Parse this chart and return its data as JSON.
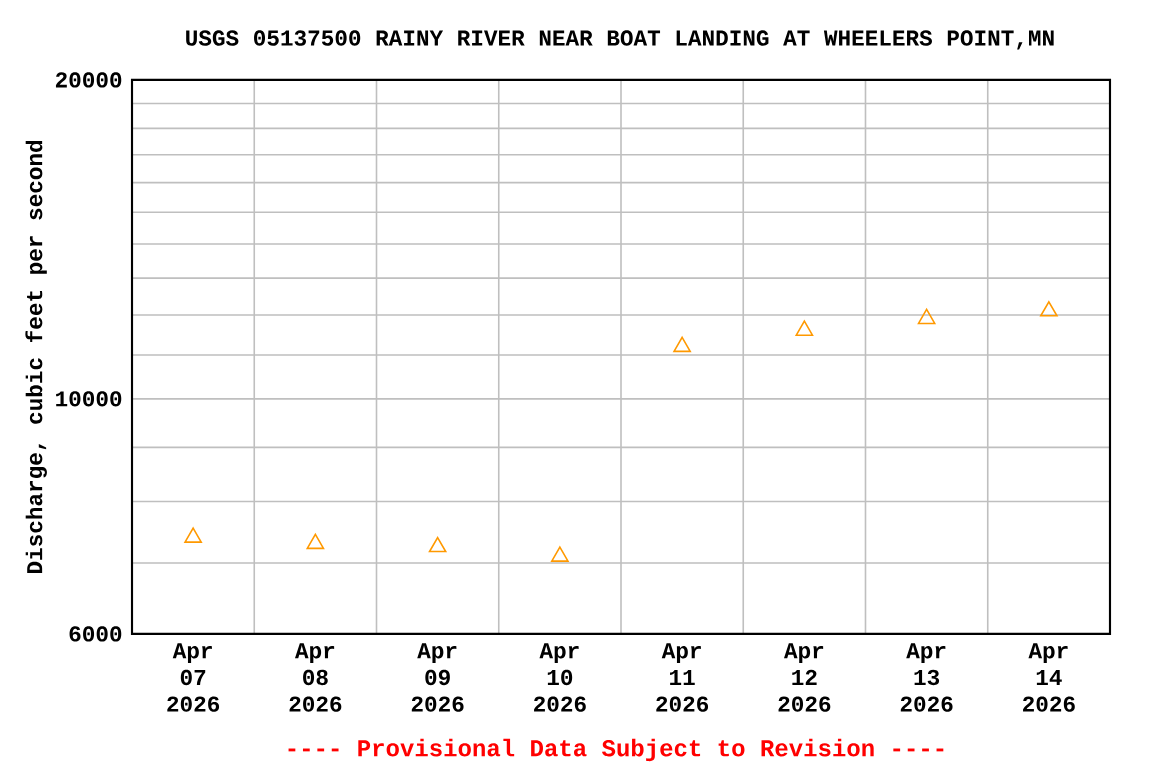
{
  "chart_data": {
    "type": "scatter",
    "title": "USGS 05137500 RAINY RIVER NEAR BOAT LANDING AT WHEELERS POINT,MN",
    "ylabel": "Discharge, cubic feet per second",
    "categories": [
      "Apr 07 2026",
      "Apr 08 2026",
      "Apr 09 2026",
      "Apr 10 2026",
      "Apr 11 2026",
      "Apr 12 2026",
      "Apr 13 2026",
      "Apr 14 2026"
    ],
    "series": [
      {
        "color": "#ff9900",
        "values": [
          7400,
          7300,
          7250,
          7100,
          11200,
          11600,
          11900,
          12100
        ]
      }
    ],
    "marker": "triangle",
    "log": true,
    "grid": true,
    "ylim": [
      6000,
      20000
    ],
    "yticks": [
      6000,
      {
        "value": 7000,
        "label": null
      },
      {
        "value": 8000,
        "label": null
      },
      {
        "value": 9000,
        "label": null
      },
      10000,
      {
        "value": 11000,
        "label": null
      },
      {
        "value": 12000,
        "label": null
      },
      {
        "value": 13000,
        "label": null
      },
      {
        "value": 14000,
        "label": null
      },
      {
        "value": 15000,
        "label": null
      },
      {
        "value": 16000,
        "label": null
      },
      {
        "value": 17000,
        "label": null
      },
      {
        "value": 18000,
        "label": null
      },
      {
        "value": 19000,
        "label": null
      },
      20000
    ],
    "annotations": [
      "---- Provisional Data Subject to Revision ----"
    ]
  }
}
